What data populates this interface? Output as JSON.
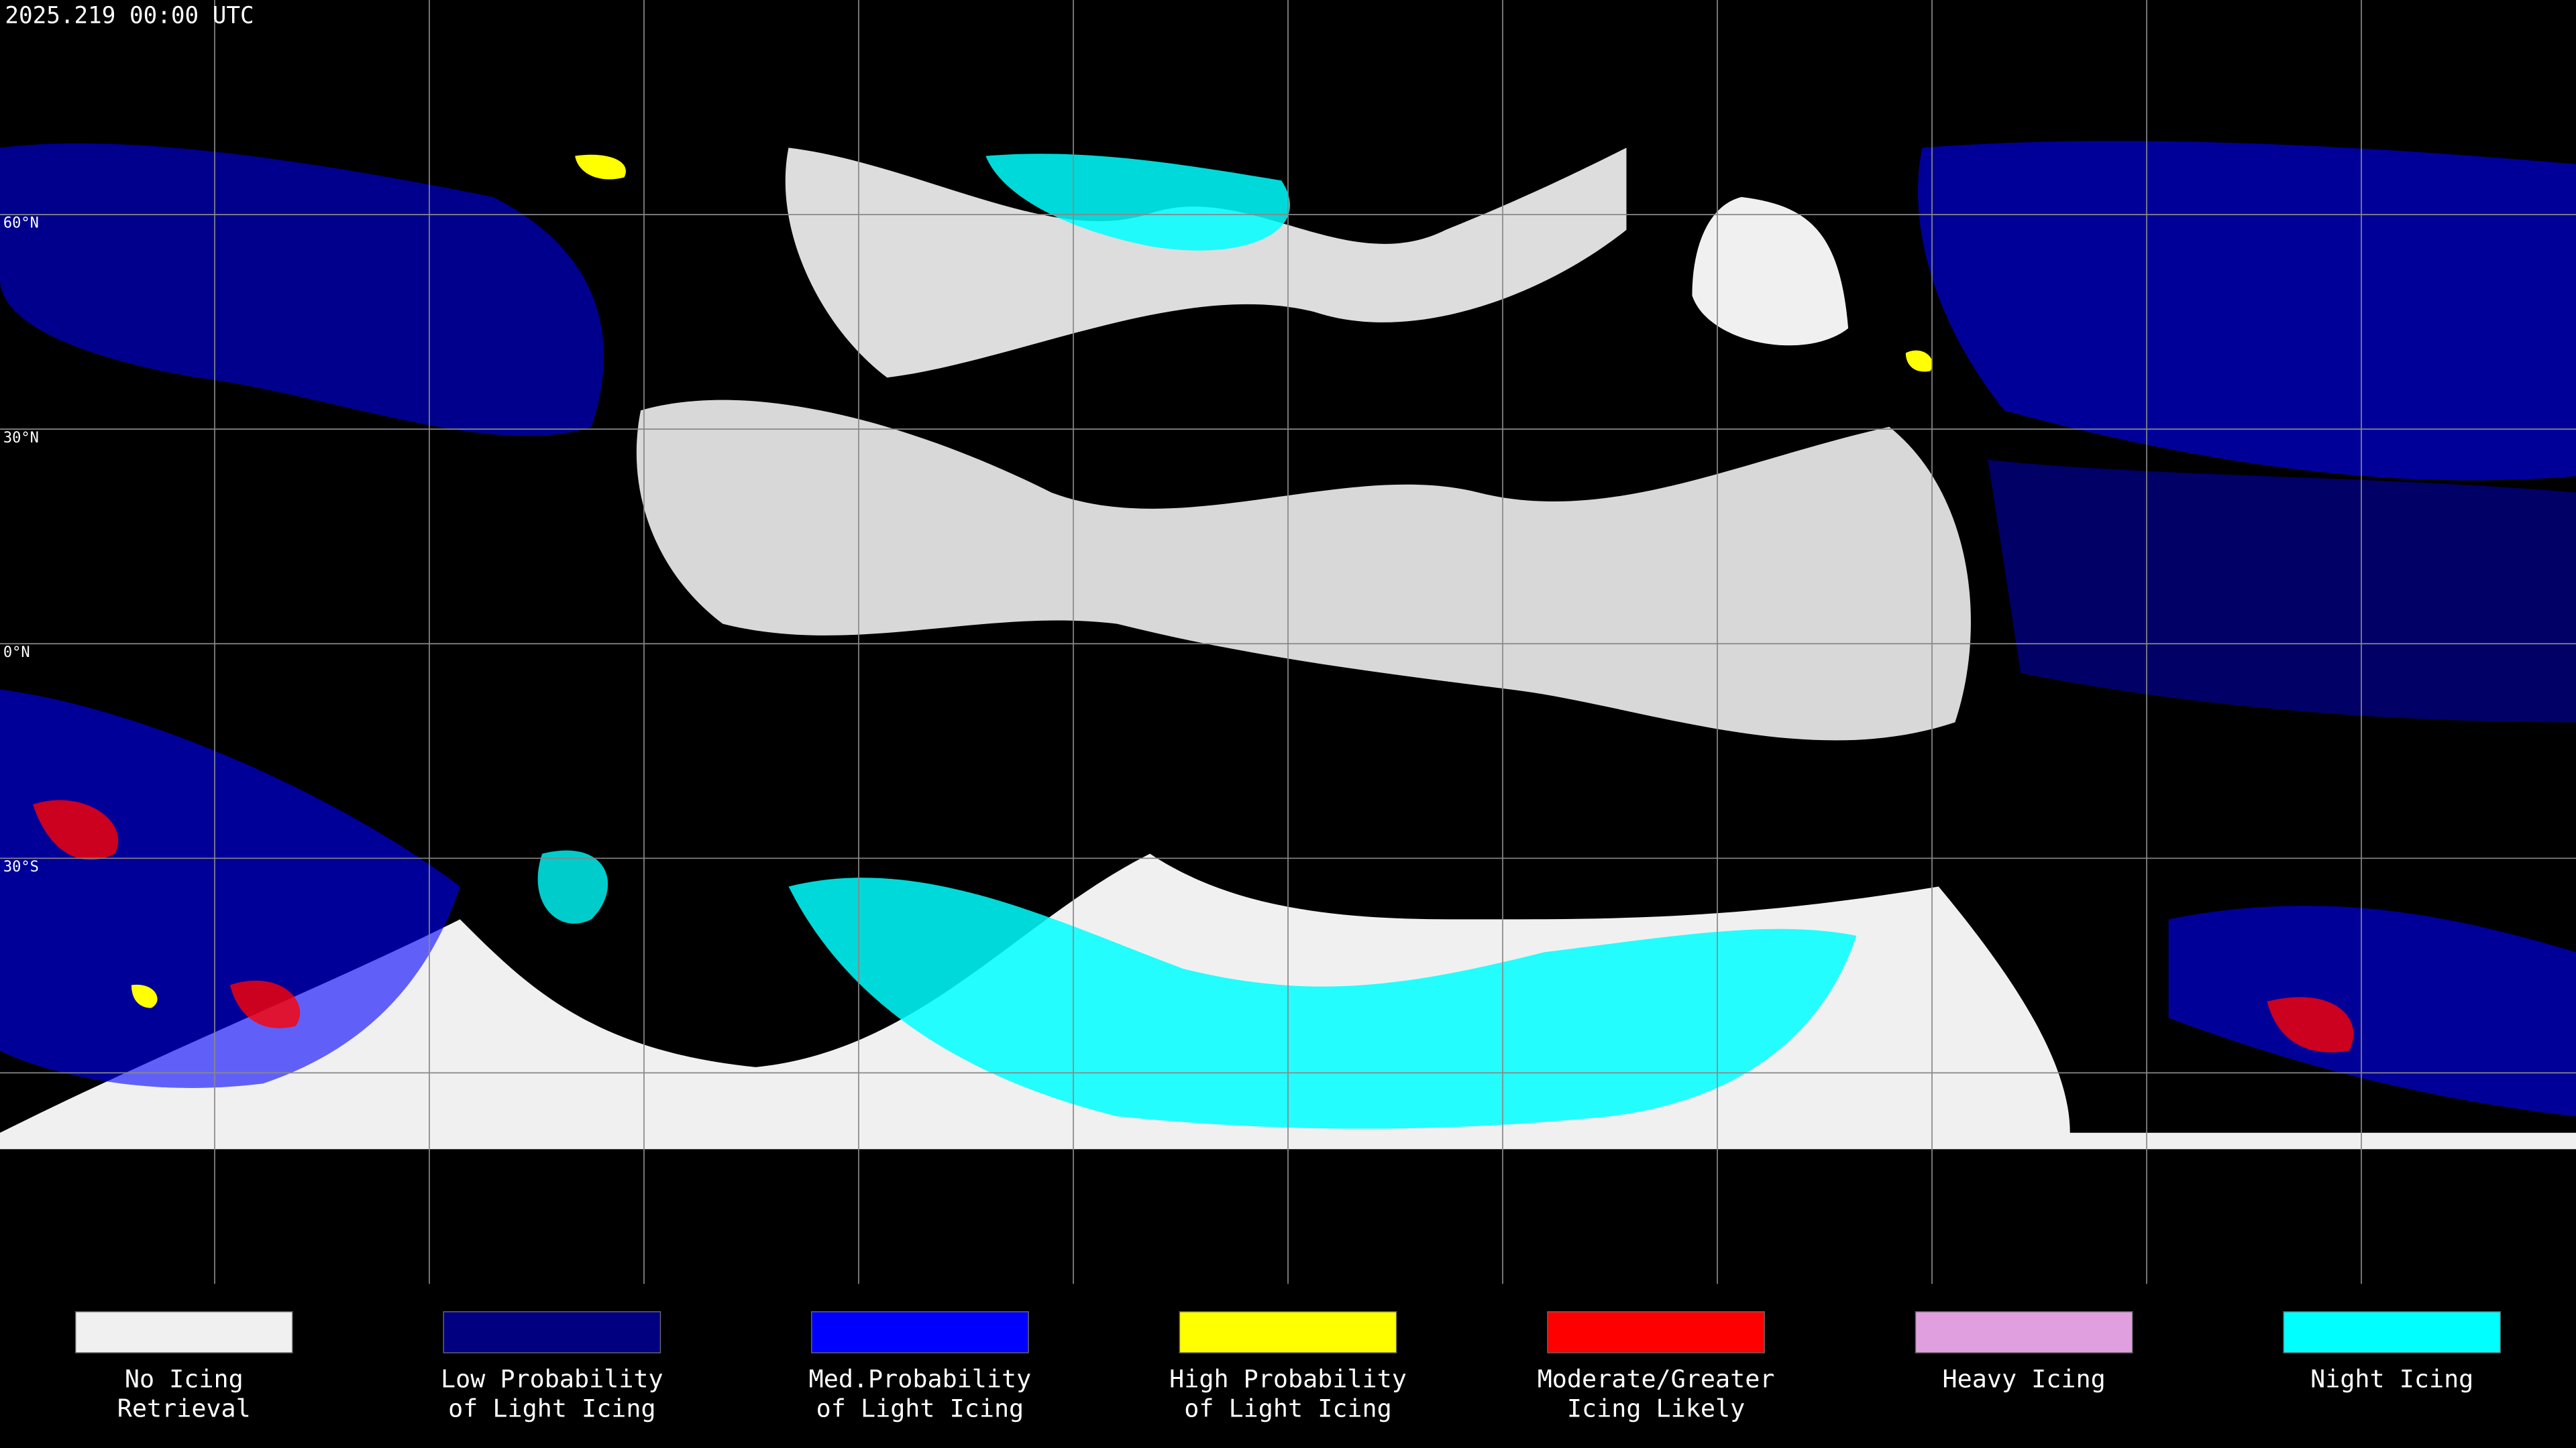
{
  "header": {
    "title": "2025.219 00:00 UTC"
  },
  "latitude_labels": [
    "60°N",
    "30°N",
    "0°N",
    "30°S"
  ],
  "legend": [
    {
      "lines": [
        "No Icing",
        "Retrieval"
      ],
      "color": "#f0f0f0"
    },
    {
      "lines": [
        "Low Probability",
        "of Light Icing"
      ],
      "color": "#000080"
    },
    {
      "lines": [
        "Med.Probability",
        "of Light Icing"
      ],
      "color": "#0000ff"
    },
    {
      "lines": [
        "High Probability",
        "of Light Icing"
      ],
      "color": "#ffff00"
    },
    {
      "lines": [
        "Moderate/Greater",
        "Icing Likely"
      ],
      "color": "#ff0000"
    },
    {
      "lines": [
        "Heavy Icing"
      ],
      "color": "#e0a0e0"
    },
    {
      "lines": [
        "Night Icing"
      ],
      "color": "#00ffff"
    }
  ]
}
